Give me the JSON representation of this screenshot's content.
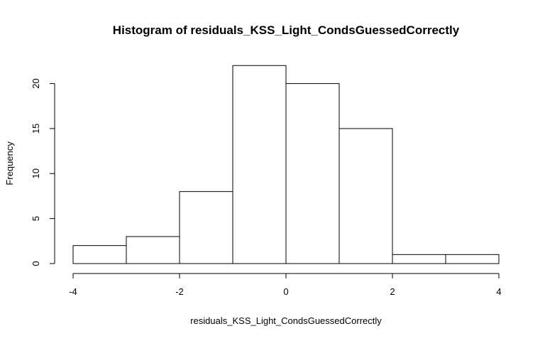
{
  "chart_data": {
    "type": "bar",
    "title": "Histogram of residuals_KSS_Light_CondsGuessedCorrectly",
    "xlabel": "residuals_KSS_Light_CondsGuessedCorrectly",
    "ylabel": "Frequency",
    "bins": [
      {
        "x0": -4,
        "x1": -3,
        "count": 2
      },
      {
        "x0": -3,
        "x1": -2,
        "count": 3
      },
      {
        "x0": -2,
        "x1": -1,
        "count": 8
      },
      {
        "x0": -1,
        "x1": 0,
        "count": 22
      },
      {
        "x0": 0,
        "x1": 1,
        "count": 20
      },
      {
        "x0": 1,
        "x1": 2,
        "count": 15
      },
      {
        "x0": 2,
        "x1": 3,
        "count": 1
      },
      {
        "x0": 3,
        "x1": 4,
        "count": 1
      }
    ],
    "xlim": [
      -4,
      4
    ],
    "ylim": [
      0,
      22
    ],
    "xticks": [
      -4,
      -2,
      0,
      2,
      4
    ],
    "xtick_labels": [
      "-4",
      "-2",
      "0",
      "2",
      "4"
    ],
    "yticks": [
      0,
      5,
      10,
      15,
      20
    ],
    "ytick_labels": [
      "0",
      "5",
      "10",
      "15",
      "20"
    ],
    "grid": false,
    "colors": {
      "bar_fill": "#ffffff",
      "bar_stroke": "#000000"
    }
  }
}
